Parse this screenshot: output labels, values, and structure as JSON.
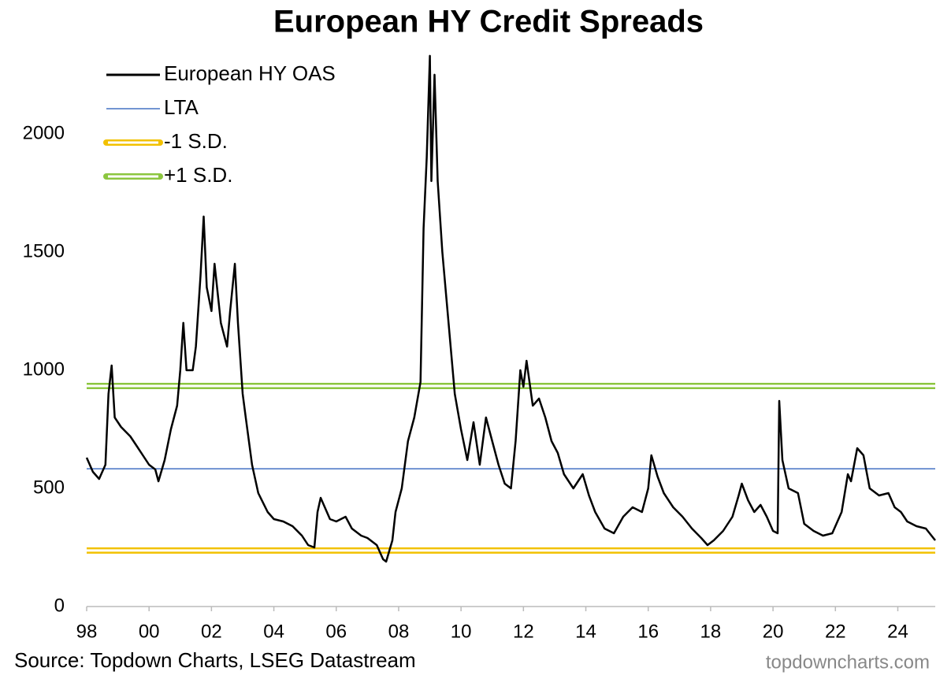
{
  "chart_data": {
    "type": "line",
    "title": "European HY Credit Spreads",
    "source": "Source: Topdown Charts, LSEG Datastream",
    "watermark": "topdowncharts.com",
    "xlim": [
      1998,
      2025.2
    ],
    "xticks": [
      {
        "value": 1998,
        "label": "98"
      },
      {
        "value": 2000,
        "label": "00"
      },
      {
        "value": 2002,
        "label": "02"
      },
      {
        "value": 2004,
        "label": "04"
      },
      {
        "value": 2006,
        "label": "06"
      },
      {
        "value": 2008,
        "label": "08"
      },
      {
        "value": 2010,
        "label": "10"
      },
      {
        "value": 2012,
        "label": "12"
      },
      {
        "value": 2014,
        "label": "14"
      },
      {
        "value": 2016,
        "label": "16"
      },
      {
        "value": 2018,
        "label": "18"
      },
      {
        "value": 2020,
        "label": "20"
      },
      {
        "value": 2022,
        "label": "22"
      },
      {
        "value": 2024,
        "label": "24"
      }
    ],
    "ylim": [
      0,
      2333
    ],
    "yticks": [
      0,
      500,
      1000,
      1500,
      2000
    ],
    "grid": false,
    "legend": "top-left",
    "x": [
      1998.0,
      1998.2,
      1998.4,
      1998.6,
      1998.7,
      1998.8,
      1998.9,
      1999.1,
      1999.4,
      1999.6,
      1999.8,
      2000.0,
      2000.2,
      2000.3,
      2000.5,
      2000.7,
      2000.9,
      2001.0,
      2001.1,
      2001.2,
      2001.4,
      2001.5,
      2001.65,
      2001.75,
      2001.85,
      2002.0,
      2002.1,
      2002.3,
      2002.5,
      2002.6,
      2002.75,
      2002.85,
      2003.0,
      2003.1,
      2003.3,
      2003.5,
      2003.8,
      2004.0,
      2004.3,
      2004.6,
      2004.9,
      2005.1,
      2005.3,
      2005.4,
      2005.5,
      2005.8,
      2006.0,
      2006.3,
      2006.5,
      2006.8,
      2007.0,
      2007.3,
      2007.5,
      2007.6,
      2007.8,
      2007.9,
      2008.1,
      2008.3,
      2008.5,
      2008.7,
      2008.8,
      2008.9,
      2009.0,
      2009.05,
      2009.15,
      2009.25,
      2009.4,
      2009.6,
      2009.8,
      2010.0,
      2010.2,
      2010.4,
      2010.6,
      2010.8,
      2011.0,
      2011.2,
      2011.4,
      2011.6,
      2011.75,
      2011.9,
      2012.0,
      2012.1,
      2012.3,
      2012.5,
      2012.7,
      2012.9,
      2013.1,
      2013.3,
      2013.6,
      2013.9,
      2014.1,
      2014.3,
      2014.6,
      2014.9,
      2015.2,
      2015.5,
      2015.8,
      2016.0,
      2016.1,
      2016.3,
      2016.5,
      2016.8,
      2017.1,
      2017.4,
      2017.7,
      2017.9,
      2018.1,
      2018.4,
      2018.7,
      2018.9,
      2019.0,
      2019.2,
      2019.4,
      2019.6,
      2019.8,
      2020.0,
      2020.15,
      2020.2,
      2020.3,
      2020.5,
      2020.8,
      2021.0,
      2021.3,
      2021.6,
      2021.9,
      2022.2,
      2022.4,
      2022.5,
      2022.7,
      2022.9,
      2023.1,
      2023.4,
      2023.7,
      2023.9,
      2024.1,
      2024.3,
      2024.6,
      2024.9,
      2025.2
    ],
    "series": [
      {
        "name": "European HY OAS",
        "color": "#000000",
        "values": [
          630,
          570,
          540,
          600,
          900,
          1020,
          800,
          760,
          720,
          680,
          640,
          600,
          580,
          530,
          620,
          750,
          850,
          1000,
          1200,
          1000,
          1000,
          1100,
          1400,
          1650,
          1350,
          1250,
          1450,
          1200,
          1100,
          1250,
          1450,
          1200,
          900,
          800,
          600,
          480,
          400,
          370,
          360,
          340,
          300,
          260,
          250,
          400,
          460,
          370,
          360,
          380,
          330,
          300,
          290,
          260,
          200,
          190,
          280,
          400,
          500,
          700,
          800,
          950,
          1600,
          1900,
          2330,
          1800,
          2250,
          1800,
          1500,
          1200,
          900,
          750,
          620,
          780,
          600,
          800,
          700,
          600,
          520,
          500,
          700,
          1000,
          930,
          1040,
          850,
          880,
          800,
          700,
          650,
          560,
          500,
          560,
          470,
          400,
          330,
          310,
          380,
          420,
          400,
          500,
          640,
          550,
          480,
          420,
          380,
          330,
          290,
          260,
          280,
          320,
          380,
          470,
          520,
          450,
          400,
          430,
          380,
          320,
          310,
          870,
          620,
          500,
          480,
          350,
          320,
          300,
          310,
          400,
          560,
          530,
          670,
          640,
          500,
          470,
          480,
          420,
          400,
          360,
          340,
          330,
          280
        ]
      }
    ],
    "hlines": [
      {
        "name": "LTA",
        "value": 583,
        "color": "#4472c4",
        "style": "thin"
      },
      {
        "name": "-1 S.D.",
        "value": 237,
        "color": "#f2c100",
        "style": "double"
      },
      {
        "name": "+1 S.D.",
        "value": 933,
        "color": "#8cc63f",
        "style": "double"
      }
    ]
  }
}
